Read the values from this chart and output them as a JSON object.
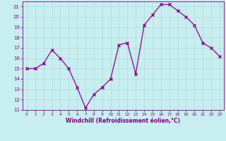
{
  "x": [
    0,
    1,
    2,
    3,
    4,
    5,
    6,
    7,
    8,
    9,
    10,
    11,
    12,
    13,
    14,
    15,
    16,
    17,
    18,
    19,
    20,
    21,
    22,
    23
  ],
  "y": [
    15,
    15,
    15.5,
    16.8,
    16,
    15,
    13.2,
    11.2,
    12.5,
    13.2,
    14,
    17.3,
    17.5,
    14.5,
    19.2,
    20.2,
    21.2,
    21.2,
    20.6,
    20.0,
    19.2,
    17.5,
    17.0,
    16.2
  ],
  "line_color": "#8b008b",
  "marker": "x",
  "marker_size": 3,
  "marker_lw": 1.0,
  "line_width": 0.9,
  "bg_color": "#c8eef0",
  "grid_color": "#b0d8dc",
  "xlabel": "Windchill (Refroidissement éolien,°C)",
  "ylim": [
    11,
    21.5
  ],
  "xlim": [
    -0.5,
    23.5
  ],
  "yticks": [
    11,
    12,
    13,
    14,
    15,
    16,
    17,
    18,
    19,
    20,
    21
  ],
  "xticks": [
    0,
    1,
    2,
    3,
    4,
    5,
    6,
    7,
    8,
    9,
    10,
    11,
    12,
    13,
    14,
    15,
    16,
    17,
    18,
    19,
    20,
    21,
    22,
    23
  ],
  "xlabel_color": "#7b007b",
  "xlabel_fontsize": 5.5,
  "tick_fontsize": 5,
  "tick_color": "#7b007b",
  "spine_color": "#7b007b"
}
